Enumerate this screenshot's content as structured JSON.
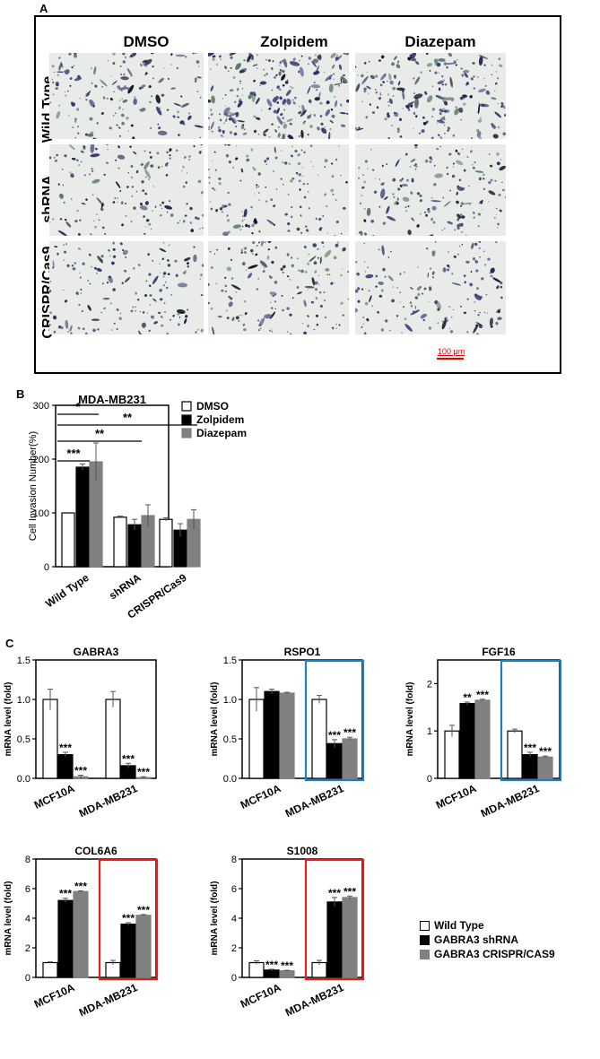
{
  "panel_labels": {
    "a": "A",
    "b": "B",
    "c": "C"
  },
  "panel_a": {
    "columns": [
      "DMSO",
      "Zolpidem",
      "Diazepam"
    ],
    "rows": [
      "Wild Type",
      "shRNA",
      "CRISPR/Cas9"
    ],
    "scale_bar_label": "100 μm",
    "cell_density": [
      [
        0.35,
        0.75,
        0.55
      ],
      [
        0.3,
        0.2,
        0.35
      ],
      [
        0.3,
        0.3,
        0.3
      ]
    ]
  },
  "chart_data": [
    {
      "type": "bar",
      "title": "MDA-MB231",
      "ylabel": "Cell Invasion Number(%)",
      "ylim": [
        0,
        300
      ],
      "yticks": [
        "0",
        "100",
        "200",
        "300"
      ],
      "categories": [
        "Wild Type",
        "shRNA",
        "CRISPR/Cas9"
      ],
      "series": [
        {
          "name": "DMSO",
          "values": [
            100,
            92,
            88
          ],
          "errors": [
            0,
            2,
            3
          ],
          "color": "#ffffff"
        },
        {
          "name": "Zolpidem",
          "values": [
            185,
            78,
            68
          ],
          "errors": [
            6,
            10,
            12
          ],
          "color": "#000000"
        },
        {
          "name": "Diazepam",
          "values": [
            195,
            95,
            88
          ],
          "errors": [
            35,
            20,
            18
          ],
          "color": "#808080"
        }
      ],
      "significance": [
        {
          "label": "*",
          "from": "Wild Type",
          "to": "shRNA"
        },
        {
          "label": "**",
          "from": "Wild Type",
          "to": "CRISPR/Cas9"
        },
        {
          "label": "**",
          "from": "Wild Type",
          "to": "shRNA"
        },
        {
          "label": "***",
          "from": "Wild Type",
          "to": "Wild Type"
        }
      ]
    },
    {
      "type": "bar",
      "title": "GABRA3",
      "ylabel": "mRNA level (fold)",
      "ylim": [
        0,
        1.5
      ],
      "yticks": [
        "0.0",
        "0.5",
        "1.0",
        "1.5"
      ],
      "categories": [
        "MCF10A",
        "MDA-MB231"
      ],
      "series": [
        {
          "name": "Wild Type",
          "values": [
            1.0,
            1.0
          ],
          "errors": [
            0.13,
            0.1
          ]
        },
        {
          "name": "GABRA3 shRNA",
          "values": [
            0.3,
            0.16
          ],
          "errors": [
            0.03,
            0.03
          ]
        },
        {
          "name": "GABRA3 CRISPR/CAS9",
          "values": [
            0.02,
            0.01
          ],
          "errors": [
            0.02,
            0.01
          ]
        }
      ],
      "stars": [
        [
          "",
          "***",
          "***"
        ],
        [
          "",
          "***",
          "***"
        ]
      ]
    },
    {
      "type": "bar",
      "title": "RSPO1",
      "ylabel": "mRNA level (fold)",
      "ylim": [
        0,
        1.5
      ],
      "yticks": [
        "0.0",
        "0.5",
        "1.0",
        "1.5"
      ],
      "categories": [
        "MCF10A",
        "MDA-MB231"
      ],
      "series": [
        {
          "name": "Wild Type",
          "values": [
            1.0,
            1.0
          ],
          "errors": [
            0.15,
            0.05
          ]
        },
        {
          "name": "GABRA3 shRNA",
          "values": [
            1.1,
            0.44
          ],
          "errors": [
            0.03,
            0.05
          ]
        },
        {
          "name": "GABRA3 CRISPR/CAS9",
          "values": [
            1.08,
            0.5
          ],
          "errors": [
            0.01,
            0.02
          ]
        }
      ],
      "stars": [
        [
          "",
          "",
          ""
        ],
        [
          "",
          "***",
          "***"
        ]
      ],
      "highlight": "MDA-MB231",
      "highlight_color": "#1f7fc4"
    },
    {
      "type": "bar",
      "title": "FGF16",
      "ylabel": "mRNA level (fold)",
      "ylim": [
        0,
        2.5
      ],
      "yticks": [
        "0",
        "1",
        "2"
      ],
      "categories": [
        "MCF10A",
        "MDA-MB231"
      ],
      "series": [
        {
          "name": "Wild Type",
          "values": [
            1.0,
            1.0
          ],
          "errors": [
            0.12,
            0.04
          ]
        },
        {
          "name": "GABRA3 shRNA",
          "values": [
            1.58,
            0.5
          ],
          "errors": [
            0.03,
            0.05
          ]
        },
        {
          "name": "GABRA3 CRISPR/CAS9",
          "values": [
            1.65,
            0.45
          ],
          "errors": [
            0.02,
            0.02
          ]
        }
      ],
      "stars": [
        [
          "",
          "**",
          "***"
        ],
        [
          "",
          "***",
          "***"
        ]
      ],
      "highlight": "MDA-MB231",
      "highlight_color": "#1f7fc4"
    },
    {
      "type": "bar",
      "title": "COL6A6",
      "ylabel": "mRNA level (fold)",
      "ylim": [
        0,
        8
      ],
      "yticks": [
        "0",
        "2",
        "4",
        "6",
        "8"
      ],
      "categories": [
        "MCF10A",
        "MDA-MB231"
      ],
      "series": [
        {
          "name": "Wild Type",
          "values": [
            1.0,
            1.0
          ],
          "errors": [
            0.05,
            0.15
          ]
        },
        {
          "name": "GABRA3 shRNA",
          "values": [
            5.2,
            3.6
          ],
          "errors": [
            0.15,
            0.1
          ]
        },
        {
          "name": "GABRA3 CRISPR/CAS9",
          "values": [
            5.8,
            4.2
          ],
          "errors": [
            0.05,
            0.05
          ]
        }
      ],
      "stars": [
        [
          "",
          "***",
          "***"
        ],
        [
          "",
          "***",
          "***"
        ]
      ],
      "highlight": "MDA-MB231",
      "highlight_color": "#e02020"
    },
    {
      "type": "bar",
      "title": "S1008",
      "ylabel": "mRNA level (fold)",
      "ylim": [
        0,
        8
      ],
      "yticks": [
        "0",
        "2",
        "4",
        "6",
        "8"
      ],
      "categories": [
        "MCF10A",
        "MDA-MB231"
      ],
      "series": [
        {
          "name": "Wild Type",
          "values": [
            1.0,
            1.0
          ],
          "errors": [
            0.12,
            0.15
          ]
        },
        {
          "name": "GABRA3 shRNA",
          "values": [
            0.5,
            5.1
          ],
          "errors": [
            0.05,
            0.3
          ]
        },
        {
          "name": "GABRA3 CRISPR/CAS9",
          "values": [
            0.45,
            5.4
          ],
          "errors": [
            0.03,
            0.1
          ]
        }
      ],
      "stars": [
        [
          "",
          "***",
          "***"
        ],
        [
          "",
          "***",
          "***"
        ]
      ],
      "highlight": "MDA-MB231",
      "highlight_color": "#e02020"
    }
  ],
  "legend_c": [
    "Wild Type",
    "GABRA3 shRNA",
    "GABRA3 CRISPR/CAS9"
  ],
  "colors": {
    "wild_type": "#ffffff",
    "shrna": "#000000",
    "crispr": "#808080"
  }
}
